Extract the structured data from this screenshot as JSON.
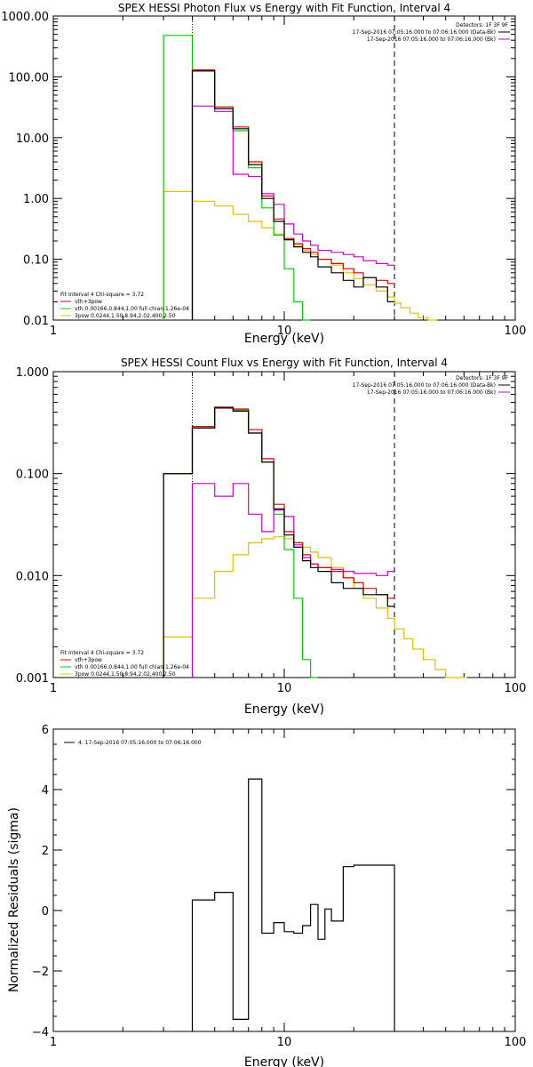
{
  "chart_data": [
    {
      "type": "line",
      "title": "SPEX HESSI Photon Flux vs Energy with Fit Function, Interval 4",
      "xlabel": "Energy (keV)",
      "ylabel": "",
      "xscale": "log",
      "yscale": "log",
      "xlim": [
        1,
        100
      ],
      "ylim": [
        0.01,
        1000
      ],
      "x_ticks": [
        "1",
        "10",
        "100"
      ],
      "y_ticks": [
        "0.01",
        "0.10",
        "1.00",
        "10.00",
        "100.00",
        "1000.00"
      ],
      "legend_top": [
        "Detectors: 1F 3F 9F",
        "17-Sep-2016 07:05:16.000 to 07:06:16.000 (Data-Bk)",
        "17-Sep-2016 07:05:16.000 to 07:06:16.000 (Bk)"
      ],
      "legend_bottom": [
        "Fit Interval 4   Chi-square = 3.72",
        "vth+3pow",
        "vth 0.00166,0.844,1.00  full chian 1.26e-04",
        "3pow 0.0244,1.50,8.94,2.02,400,2.50"
      ],
      "colors": {
        "data": "#000000",
        "fit": "#e00000",
        "vth": "#00cc00",
        "pow": "#e6c000",
        "bk": "#cc00cc"
      },
      "fit_range": [
        4,
        30
      ],
      "bin_edges": [
        3,
        4,
        5,
        6,
        7,
        8,
        9,
        10,
        11,
        12,
        13,
        14,
        16,
        18,
        20,
        22,
        25,
        28,
        30
      ],
      "series": [
        {
          "key": "data",
          "values": [
            null,
            125,
            30,
            14,
            3.6,
            1.0,
            0.42,
            0.21,
            0.16,
            0.13,
            0.11,
            0.075,
            0.06,
            0.045,
            0.035,
            0.05,
            0.035,
            0.02
          ]
        },
        {
          "key": "fit",
          "values": [
            null,
            130,
            32,
            15,
            4.0,
            1.1,
            0.46,
            0.22,
            0.18,
            0.15,
            0.13,
            0.1,
            0.085,
            0.07,
            0.06,
            0.05,
            0.045,
            0.04
          ]
        },
        {
          "key": "vth",
          "values": [
            480,
            125,
            30,
            13,
            3.2,
            0.7,
            0.25,
            0.07,
            0.02,
            0.008,
            null,
            null,
            null,
            null,
            null,
            null,
            null,
            null
          ]
        },
        {
          "key": "bk",
          "values": [
            null,
            33,
            27,
            2.5,
            2.3,
            1.2,
            0.8,
            0.38,
            0.26,
            0.2,
            0.17,
            0.14,
            0.13,
            0.12,
            0.11,
            0.095,
            0.085,
            0.08
          ]
        },
        {
          "key": "pow",
          "values": [
            1.3,
            0.9,
            0.75,
            0.55,
            0.42,
            0.33,
            0.26,
            0.21,
            0.17,
            0.14,
            0.12,
            0.1,
            0.08,
            0.06,
            0.048,
            0.038,
            0.03,
            0.024,
            0.019,
            0.016,
            0.013,
            0.011,
            0.009
          ]
        },
        {
          "key": "pow_edges",
          "values": [
            3,
            4,
            5,
            6,
            7,
            8,
            9,
            10,
            11,
            12,
            13,
            14,
            16,
            18,
            20,
            22,
            25,
            28,
            30,
            32,
            35,
            38,
            42,
            46
          ]
        }
      ]
    },
    {
      "type": "line",
      "title": "SPEX HESSI Count Flux vs Energy with Fit Function, Interval 4",
      "xlabel": "Energy (keV)",
      "ylabel": "",
      "xscale": "log",
      "yscale": "log",
      "xlim": [
        1,
        100
      ],
      "ylim": [
        0.001,
        1
      ],
      "x_ticks": [
        "1",
        "10",
        "100"
      ],
      "y_ticks": [
        "0.001",
        "0.010",
        "0.100",
        "1.000"
      ],
      "legend_top": [
        "Detectors: 1F 3F 9F",
        "17-Sep-2016 07:05:16.000 to 07:06:16.000 (Data-Bk)",
        "17-Sep-2016 07:05:16.000 to 07:06:16.000 (Bk)"
      ],
      "legend_bottom": [
        "Fit Interval 4   Chi-square = 3.72",
        "vth+3pow",
        "vth 0.00166,0.844,1.00  full chian 1.26e-04",
        "3pow 0.0244,1.50,8.94,2.02,400,2.50"
      ],
      "colors": {
        "data": "#000000",
        "fit": "#e00000",
        "vth": "#00cc00",
        "pow": "#e6c000",
        "bk": "#cc00cc"
      },
      "fit_range": [
        4,
        30
      ],
      "bin_edges": [
        3,
        4,
        5,
        6,
        7,
        8,
        9,
        10,
        11,
        12,
        13,
        14,
        16,
        18,
        20,
        22,
        25,
        28,
        30
      ],
      "series": [
        {
          "key": "data",
          "values": [
            0.1,
            0.28,
            0.44,
            0.41,
            0.25,
            0.13,
            0.045,
            0.025,
            0.019,
            0.014,
            0.012,
            0.011,
            0.0085,
            0.0075,
            0.0075,
            0.0065,
            0.0065,
            0.005
          ]
        },
        {
          "key": "fit",
          "values": [
            0.1,
            0.29,
            0.45,
            0.43,
            0.27,
            0.14,
            0.05,
            0.027,
            0.021,
            0.016,
            0.013,
            0.012,
            0.011,
            0.0095,
            0.0085,
            0.0075,
            0.0065,
            0.006
          ]
        },
        {
          "key": "vth",
          "values": [
            0.1,
            0.28,
            0.44,
            0.42,
            0.25,
            0.13,
            0.04,
            0.018,
            0.006,
            0.0015,
            0.0001,
            null,
            null,
            null,
            null,
            null,
            null,
            null
          ]
        },
        {
          "key": "bk",
          "values": [
            null,
            0.08,
            0.06,
            0.08,
            0.04,
            0.027,
            0.044,
            0.038,
            0.02,
            0.015,
            0.013,
            0.012,
            0.0115,
            0.011,
            0.0105,
            0.0105,
            0.01,
            0.011
          ]
        },
        {
          "key": "pow",
          "values": [
            0.0025,
            0.006,
            0.011,
            0.016,
            0.021,
            0.023,
            0.024,
            0.023,
            0.021,
            0.019,
            0.017,
            0.015,
            0.012,
            0.0095,
            0.0075,
            0.006,
            0.0048,
            0.0038,
            0.003,
            0.0024,
            0.0019,
            0.0015,
            0.0012,
            0.001,
            0.0008
          ]
        },
        {
          "key": "pow_edges",
          "values": [
            3,
            4,
            5,
            6,
            7,
            8,
            9,
            10,
            11,
            12,
            13,
            14,
            16,
            18,
            20,
            22,
            25,
            28,
            30,
            33,
            36,
            40,
            45,
            50,
            56,
            62
          ]
        }
      ]
    },
    {
      "type": "line",
      "title": "",
      "xlabel": "Energy (keV)",
      "ylabel": "Normalized Residuals (sigma)",
      "xscale": "log",
      "yscale": "linear",
      "xlim": [
        1,
        100
      ],
      "ylim": [
        -4,
        6
      ],
      "x_ticks": [
        "1",
        "10",
        "100"
      ],
      "y_ticks": [
        "−4",
        "−2",
        "0",
        "2",
        "4",
        "6"
      ],
      "legend": "4. 17-Sep-2016 07:05:16.000 to 07:06:16.000",
      "bin_edges": [
        4,
        5,
        6,
        7,
        8,
        9,
        10,
        11,
        12,
        13,
        14,
        15,
        16,
        18,
        20,
        22,
        25,
        28,
        30
      ],
      "values": [
        0.35,
        0.6,
        -3.6,
        4.35,
        -0.75,
        -0.4,
        -0.7,
        -0.75,
        -0.5,
        0.2,
        -0.95,
        0.05,
        -0.35,
        1.45,
        1.5,
        1.5,
        1.5,
        1.5
      ]
    }
  ]
}
